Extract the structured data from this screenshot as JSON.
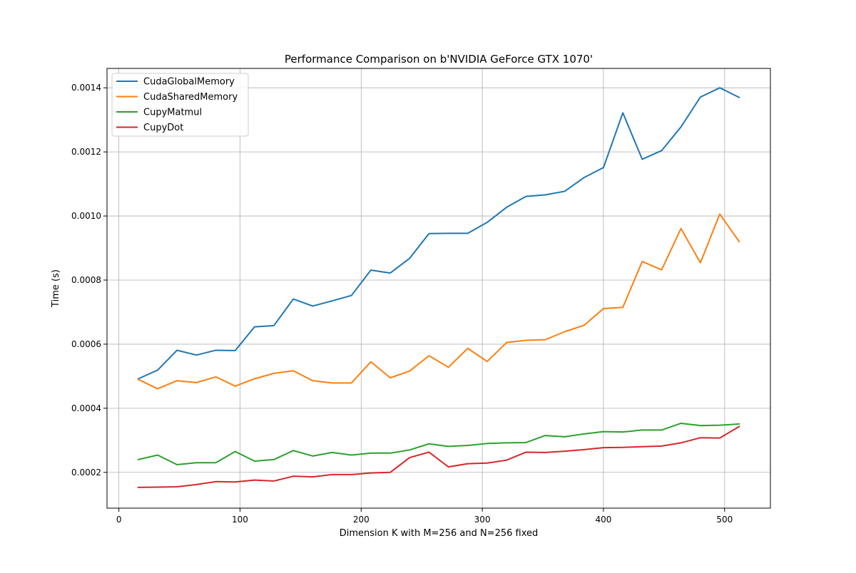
{
  "chart_data": {
    "type": "line",
    "title": "Performance Comparison on b'NVIDIA GeForce GTX 1070'",
    "xlabel": "Dimension K with M=256 and N=256 fixed",
    "ylabel": "Time (s)",
    "xlim": [
      -9.8,
      537.8
    ],
    "ylim": [
      8.83e-05,
      0.0014605
    ],
    "grid": true,
    "legend_position": "top-left",
    "x_ticks": [
      0,
      100,
      200,
      300,
      400,
      500
    ],
    "x_tick_labels": [
      "0",
      "100",
      "200",
      "300",
      "400",
      "500"
    ],
    "y_ticks": [
      0.0002,
      0.0004,
      0.0006,
      0.0008,
      0.001,
      0.0012,
      0.0014
    ],
    "y_tick_labels": [
      "0.0002",
      "0.0004",
      "0.0006",
      "0.0008",
      "0.0010",
      "0.0012",
      "0.0014"
    ],
    "x": [
      16,
      32,
      48,
      64,
      80,
      96,
      112,
      128,
      144,
      160,
      176,
      192,
      208,
      224,
      240,
      256,
      272,
      288,
      304,
      320,
      336,
      352,
      368,
      384,
      400,
      416,
      432,
      448,
      464,
      480,
      496,
      512
    ],
    "series": [
      {
        "name": "CudaGlobalMemory",
        "color": "#1f77b4",
        "values": [
          0.000492,
          0.000519,
          0.000581,
          0.000566,
          0.000581,
          0.00058,
          0.000654,
          0.000658,
          0.000741,
          0.000719,
          0.000735,
          0.000752,
          0.000831,
          0.000822,
          0.000868,
          0.000945,
          0.000946,
          0.000946,
          0.00098,
          0.001027,
          0.001061,
          0.001066,
          0.001077,
          0.00112,
          0.001151,
          0.001322,
          0.001177,
          0.001204,
          0.001278,
          0.001371,
          0.0014,
          0.00137
        ]
      },
      {
        "name": "CudaSharedMemory",
        "color": "#ff7f0e",
        "values": [
          0.00049,
          0.000461,
          0.000486,
          0.00048,
          0.000498,
          0.000469,
          0.000492,
          0.000509,
          0.000517,
          0.000486,
          0.000479,
          0.000479,
          0.000545,
          0.000495,
          0.000516,
          0.000564,
          0.000528,
          0.000587,
          0.000546,
          0.000605,
          0.000612,
          0.000614,
          0.000639,
          0.000659,
          0.000711,
          0.000715,
          0.000858,
          0.000832,
          0.000961,
          0.000854,
          0.001006,
          0.00092
        ]
      },
      {
        "name": "CupyMatmul",
        "color": "#2ca02c",
        "values": [
          0.00024,
          0.000254,
          0.000224,
          0.00023,
          0.00023,
          0.000265,
          0.000235,
          0.00024,
          0.000268,
          0.000251,
          0.000262,
          0.000254,
          0.00026,
          0.00026,
          0.00027,
          0.000289,
          0.000281,
          0.000284,
          0.00029,
          0.000292,
          0.000293,
          0.000315,
          0.000311,
          0.00032,
          0.000327,
          0.000326,
          0.000332,
          0.000332,
          0.000353,
          0.000346,
          0.000347,
          0.000351
        ]
      },
      {
        "name": "CupyDot",
        "color": "#d62728",
        "values": [
          0.000153,
          0.000154,
          0.000155,
          0.000162,
          0.000171,
          0.00017,
          0.000176,
          0.000173,
          0.000188,
          0.000186,
          0.000193,
          0.000193,
          0.000198,
          0.0002,
          0.000246,
          0.000263,
          0.000217,
          0.000227,
          0.000229,
          0.000238,
          0.000263,
          0.000262,
          0.000266,
          0.000271,
          0.000277,
          0.000278,
          0.00028,
          0.000282,
          0.000292,
          0.000308,
          0.000307,
          0.000343
        ]
      }
    ]
  }
}
